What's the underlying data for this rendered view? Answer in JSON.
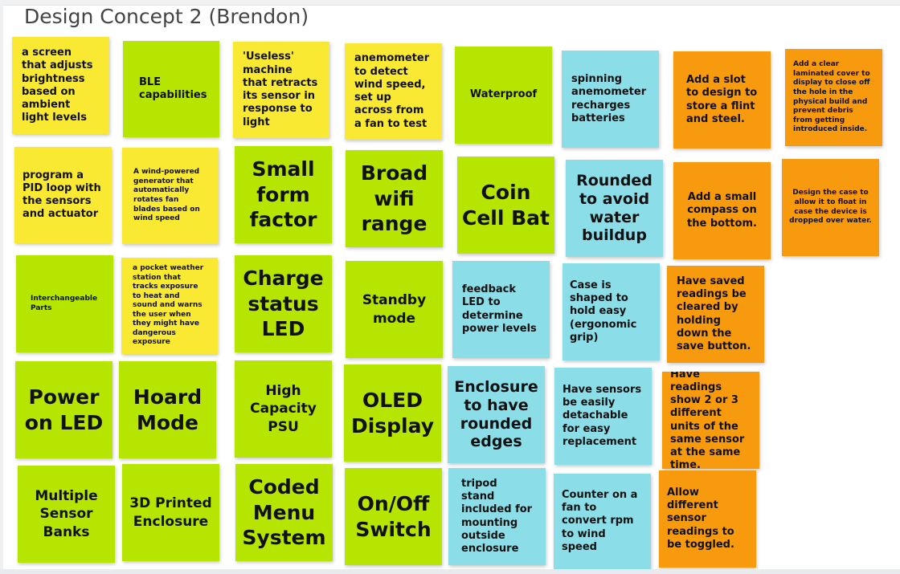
{
  "board": {
    "title": "Design Concept 2 (Brendon)"
  },
  "colors": {
    "yellow": "#fae933",
    "green": "#b5e500",
    "cyan": "#8bdde8",
    "orange": "#f79a0e"
  },
  "stickies": {
    "r1c1": "a screen that adjusts brightness based on ambient light levels",
    "r1c2": "BLE capabilities",
    "r1c3": "'Useless' machine that retracts its sensor in response to light",
    "r1c4": "anemometer to detect wind speed, set up across from a fan to test",
    "r1c5": "Waterproof",
    "r1c6": "spinning anemometer recharges batteries",
    "r1c7": "Add a slot to design to store a flint and steel.",
    "r1c8": "Add a clear laminated cover to display to close off the hole in the physical build and prevent debris from getting introduced inside.",
    "r2c1": "program a PID loop with the sensors and actuator",
    "r2c2": "A wind-powered generator that automatically rotates fan blades based on wind speed",
    "r2c3": "Small form factor",
    "r2c4": "Broad wifi range",
    "r2c5": "Coin Cell Bat",
    "r2c6": "Rounded to avoid water buildup",
    "r2c7": "Add a small compass on the bottom.",
    "r2c8": "Design the case to allow it to float in case the device is dropped over water.",
    "r3c1": "Interchangeable Parts",
    "r3c2": "a pocket weather station that tracks exposure to heat and sound and warns the user when they might have dangerous exposure",
    "r3c3": "Charge status LED",
    "r3c4": "Standby mode",
    "r3c5": "feedback LED to determine power levels",
    "r3c6": "Case is shaped to hold easy (ergonomic grip)",
    "r3c7": "Have saved readings be cleared by holding down the save button.",
    "r4c1": "Power on LED",
    "r4c2": "Hoard Mode",
    "r4c3": "High Capacity PSU",
    "r4c4": "OLED Display",
    "r4c5": "Enclosure to have rounded edges",
    "r4c6": "Have sensors be easily detachable for easy replacement",
    "r4c7": "Have readings show 2 or 3 different units of the same sensor at the same time.",
    "r5c1": "Multiple Sensor Banks",
    "r5c2": "3D Printed Enclosure",
    "r5c3": "Coded Menu System",
    "r5c4": "On/Off Switch",
    "r5c5": "tripod stand included for mounting outside enclosure",
    "r5c6": "Counter on a fan to convert rpm to wind speed",
    "r5c7": "Allow different sensor readings to be toggled."
  }
}
